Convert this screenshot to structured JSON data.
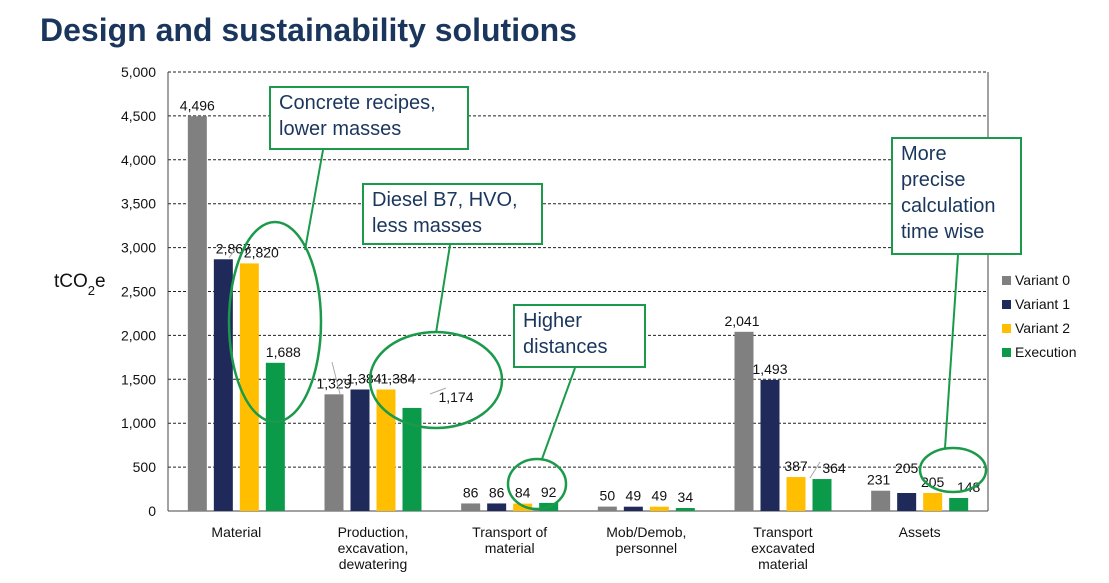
{
  "title": "Design and sustainability solutions",
  "chart_data": {
    "type": "bar",
    "ylabel_main": "tCO",
    "ylabel_sub": "2",
    "ylabel_suffix": "e",
    "ylim": [
      0,
      5000
    ],
    "yticks": [
      "0",
      "500",
      "1,000",
      "1,500",
      "2,000",
      "2,500",
      "3,000",
      "3,500",
      "4,000",
      "4,500",
      "5,000"
    ],
    "categories": [
      [
        "Material"
      ],
      [
        "Production,",
        "excavation,",
        "dewatering"
      ],
      [
        "Transport of",
        "material"
      ],
      [
        "Mob/Demob,",
        "personnel"
      ],
      [
        "Transport",
        "excavated",
        "material"
      ],
      [
        "Assets"
      ]
    ],
    "series": [
      {
        "name": "Variant 0",
        "color": "#808080",
        "values": [
          4496,
          1329,
          86,
          50,
          2041,
          231
        ],
        "labels": [
          "4,496",
          "1,329",
          "86",
          "50",
          "2,041",
          "231"
        ]
      },
      {
        "name": "Variant 1",
        "color": "#1f2a5a",
        "values": [
          2867,
          1384,
          86,
          49,
          1493,
          205
        ],
        "labels": [
          "2,867",
          "1,384",
          "86",
          "49",
          "1,493",
          "205"
        ]
      },
      {
        "name": "Variant 2",
        "color": "#ffbf00",
        "values": [
          2820,
          1384,
          84,
          49,
          387,
          205
        ],
        "labels": [
          "2,820",
          "1,384",
          "84",
          "49",
          "387",
          "205"
        ]
      },
      {
        "name": "Execution",
        "color": "#0a9a4a",
        "values": [
          1688,
          1174,
          92,
          34,
          364,
          148
        ],
        "labels": [
          "1,688",
          "1,174",
          "92",
          "34",
          "364",
          "148"
        ]
      }
    ],
    "legend_position": "right",
    "grid": true
  },
  "callouts": {
    "c1": "Concrete recipes,\nlower masses",
    "c2": "Diesel B7, HVO,\nless masses",
    "c3": "Higher\ndistances",
    "c4": "More\nprecise\ncalculation\ntime wise"
  },
  "colors": {
    "accent": "#1a9a4a",
    "title": "#1b365d"
  }
}
